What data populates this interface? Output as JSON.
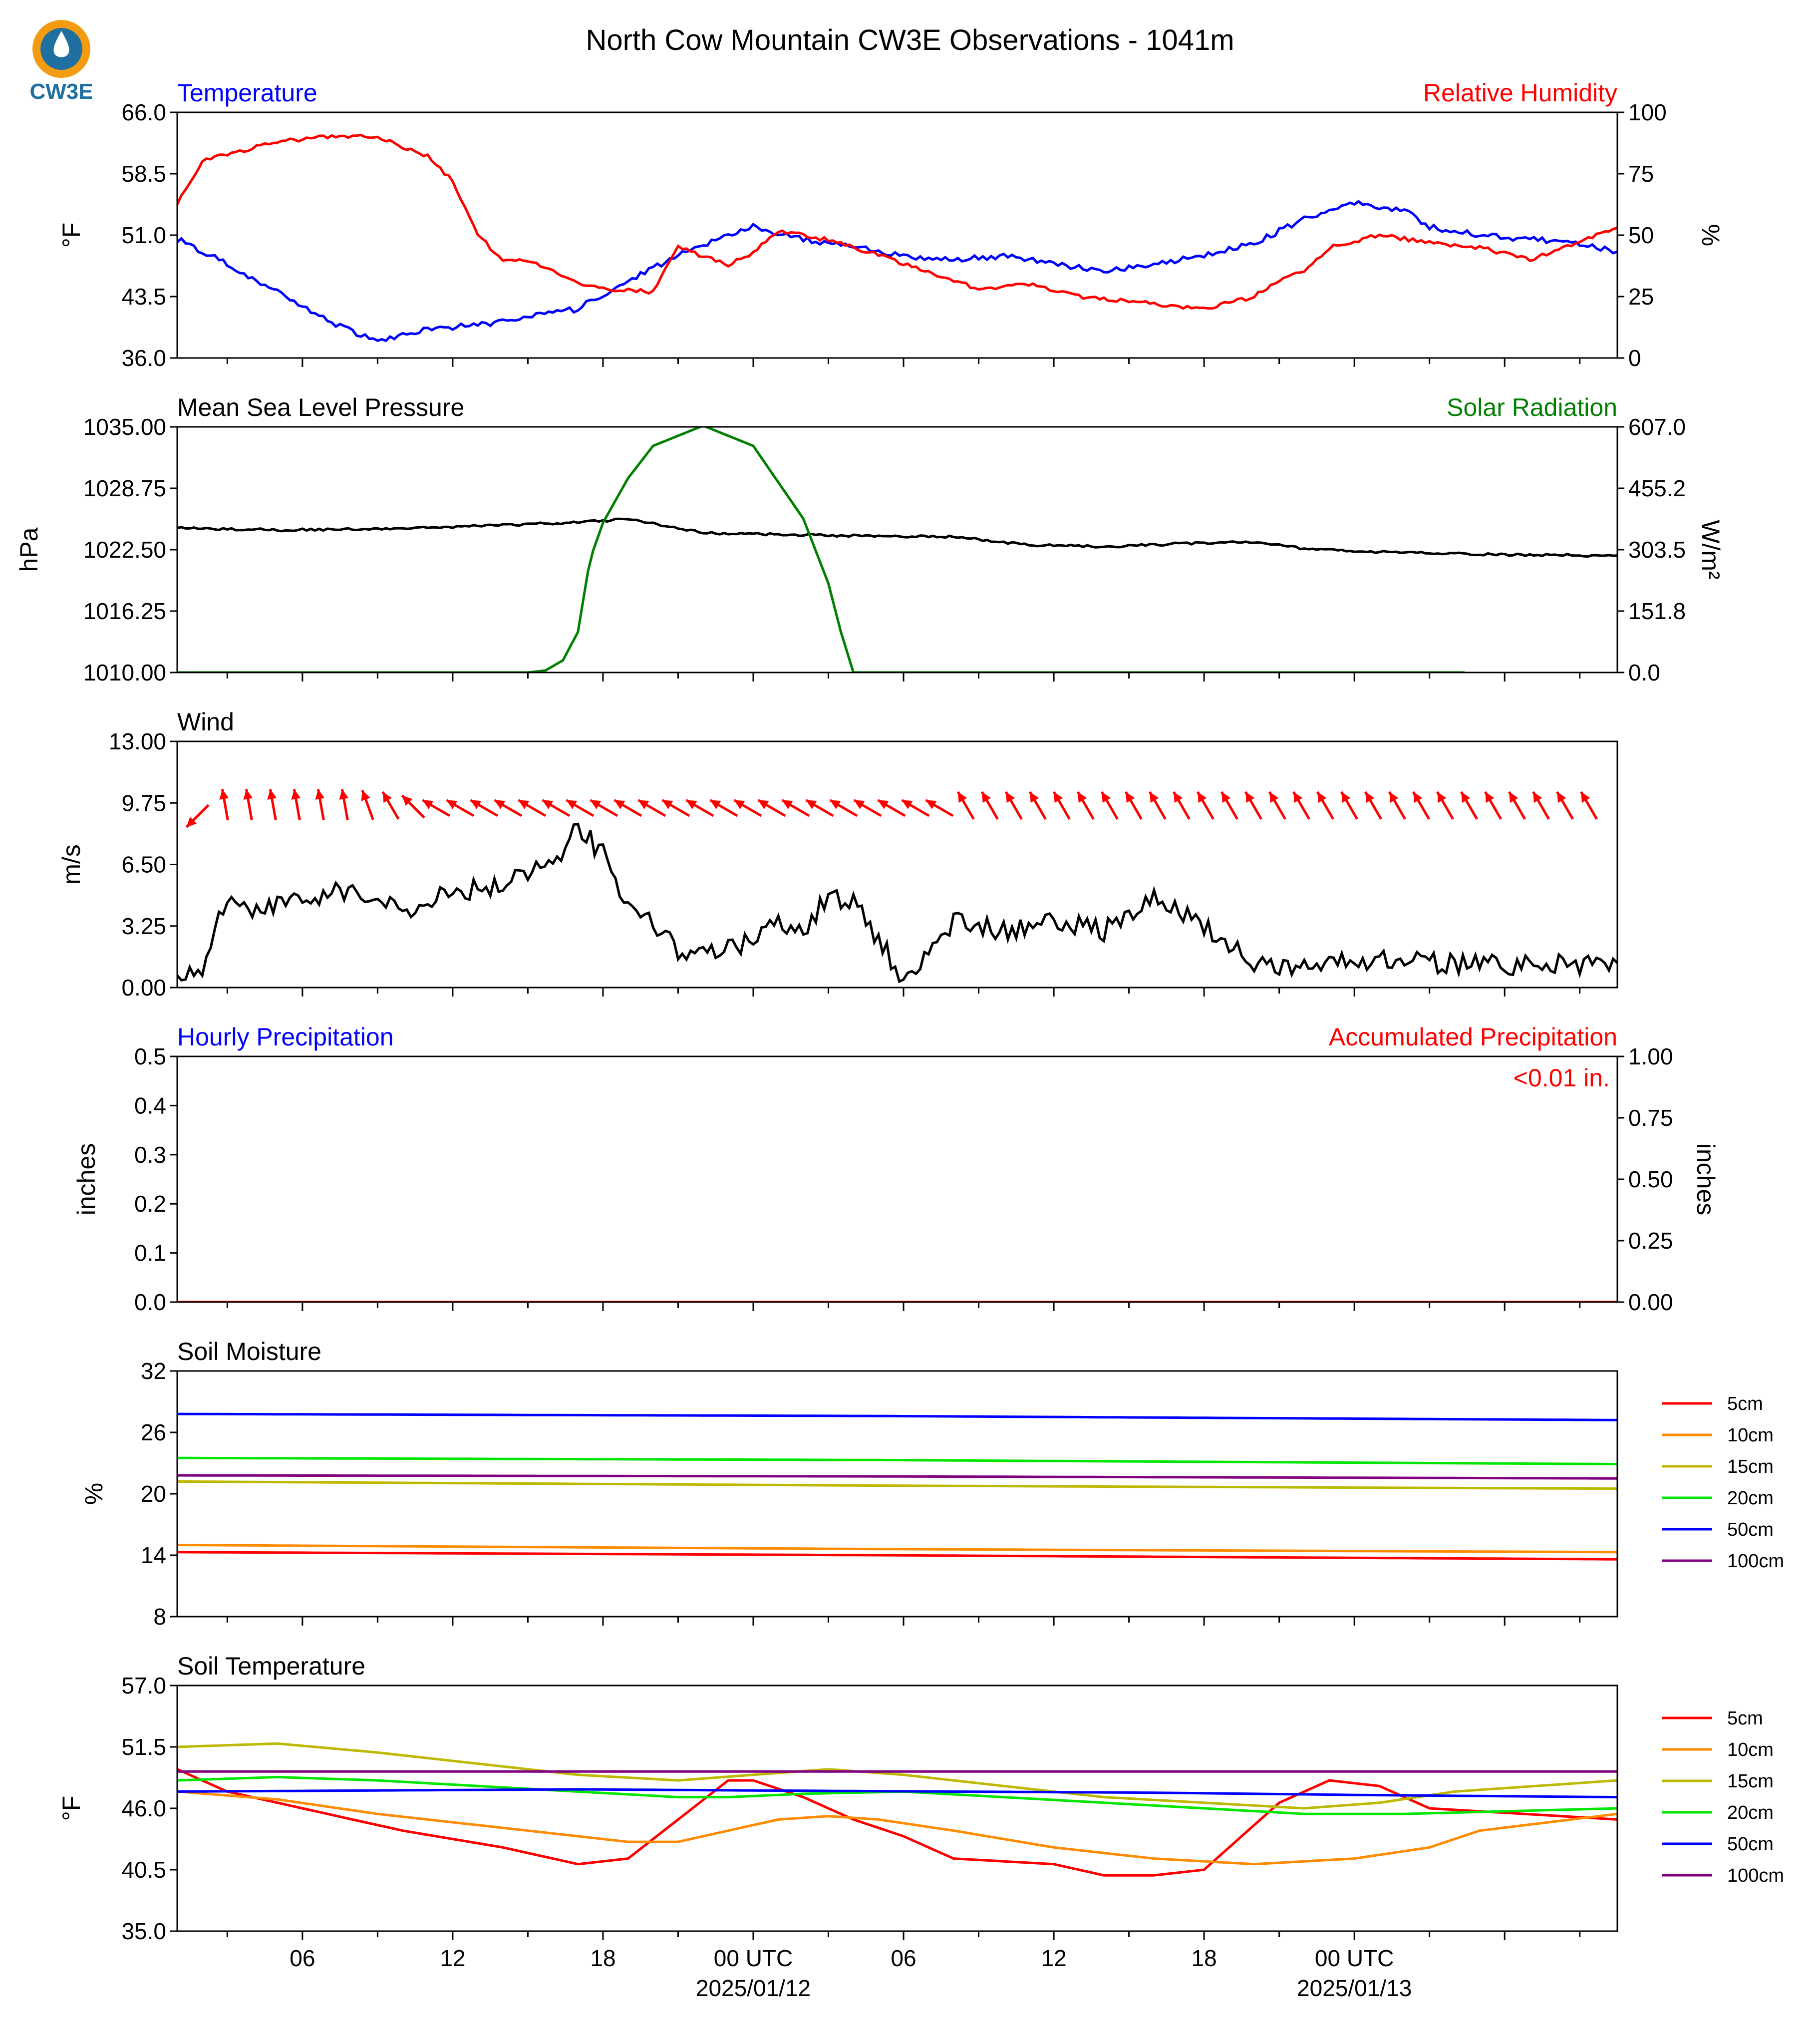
{
  "title": "North Cow Mountain CW3E Observations - 1041m",
  "logo": {
    "text": "CW3E",
    "icon": "cw3e-water-drop-logo"
  },
  "colors": {
    "blue": "#0000ff",
    "red": "#ff0000",
    "green": "#008000",
    "black": "#000000",
    "orange": "#ff8c00",
    "olive": "#bdb800",
    "lime": "#00e600",
    "purple": "#800080"
  },
  "x_axis": {
    "range_hours": [
      -23,
      34.5
    ],
    "ticks": [
      {
        "hour": -18,
        "label": "06"
      },
      {
        "hour": -12,
        "label": "12"
      },
      {
        "hour": -6,
        "label": "18"
      },
      {
        "hour": 0,
        "label": "00 UTC",
        "sub": "2025/01/12"
      },
      {
        "hour": 6,
        "label": "06"
      },
      {
        "hour": 12,
        "label": "12"
      },
      {
        "hour": 18,
        "label": "18"
      },
      {
        "hour": 24,
        "label": "00 UTC",
        "sub": "2025/01/13"
      }
    ]
  },
  "chart_data": [
    {
      "type": "line",
      "left_title": "Temperature",
      "right_title": "Relative Humidity",
      "ylabel": "°F",
      "ylabel_right": "%",
      "ylim": [
        36.0,
        66.0
      ],
      "yticks": [
        "36.0",
        "43.5",
        "51.0",
        "58.5",
        "66.0"
      ],
      "ylim_right": [
        0,
        100
      ],
      "yticks_right": [
        "0",
        "25",
        "50",
        "75",
        "100"
      ],
      "series": [
        {
          "axis": "left",
          "color": "#0000ff",
          "x": [
            -23,
            -21,
            -19,
            -17,
            -15,
            -13,
            -11,
            -9,
            -7,
            -5,
            -3,
            -1,
            0,
            2,
            4,
            6,
            8,
            10,
            12,
            14,
            16,
            18,
            20,
            22,
            24,
            26,
            27,
            29,
            31,
            33,
            34.5
          ],
          "y": [
            50.5,
            47.5,
            44.0,
            40.5,
            38.0,
            39.5,
            40.0,
            41.0,
            42.0,
            45.5,
            48.5,
            51.0,
            52.0,
            50.5,
            49.5,
            48.5,
            48.0,
            48.5,
            47.5,
            46.5,
            47.5,
            48.5,
            50.0,
            53.0,
            55.0,
            54.0,
            52.0,
            51.0,
            50.5,
            50.0,
            49.0
          ]
        },
        {
          "axis": "right",
          "color": "#ff0000",
          "x": [
            -23,
            -22,
            -21,
            -19,
            -17,
            -15,
            -13,
            -12,
            -11,
            -10,
            -9,
            -7,
            -6,
            -4,
            -3,
            -1,
            0,
            1,
            3,
            5,
            7,
            9,
            11,
            13,
            15,
            17,
            18,
            20,
            21,
            22,
            23,
            25,
            27,
            29,
            31,
            34.5
          ],
          "y": [
            63,
            80,
            83,
            88,
            90,
            90,
            82,
            72,
            50,
            40,
            40,
            30,
            28,
            27,
            45,
            38,
            43,
            52,
            48,
            42,
            35,
            28,
            30,
            25,
            23,
            21,
            20,
            25,
            32,
            35,
            45,
            50,
            47,
            45,
            40,
            53
          ]
        }
      ]
    },
    {
      "type": "line",
      "left_title": "Mean Sea Level Pressure",
      "right_title": "Solar Radiation",
      "ylabel": "hPa",
      "ylabel_right": "W/m²",
      "ylim": [
        1010.0,
        1035.0
      ],
      "yticks": [
        "1010.00",
        "1016.25",
        "1022.50",
        "1028.75",
        "1035.00"
      ],
      "ylim_right": [
        0.0,
        607.0
      ],
      "yticks_right": [
        "0.0",
        "151.8",
        "303.5",
        "455.2",
        "607.0"
      ],
      "series": [
        {
          "axis": "left",
          "color": "#000000",
          "x": [
            -23,
            -19,
            -15,
            -11,
            -7,
            -5,
            -2,
            2,
            5,
            8,
            11,
            14,
            18,
            20,
            22,
            24,
            26,
            27,
            30,
            34.5
          ],
          "y": [
            1024.7,
            1024.5,
            1024.6,
            1024.9,
            1025.3,
            1025.6,
            1024.2,
            1024.0,
            1023.9,
            1023.8,
            1023.0,
            1022.8,
            1023.2,
            1023.3,
            1022.6,
            1022.3,
            1022.2,
            1022.2,
            1022.0,
            1021.9
          ]
        },
        {
          "axis": "right",
          "color": "#008000",
          "x": [
            -23,
            -9,
            -8.3,
            -7.6,
            -7,
            -6.6,
            -6.4,
            -6,
            -5,
            -4,
            -2,
            0,
            2,
            3,
            3.5,
            4,
            7,
            14,
            15,
            15.8,
            16.6,
            17,
            17.4,
            18,
            19,
            20,
            22,
            24,
            26,
            27,
            28,
            28.4
          ],
          "y": [
            0,
            0,
            5,
            30,
            100,
            250,
            300,
            370,
            480,
            560,
            610,
            560,
            380,
            220,
            100,
            0,
            0,
            0,
            0,
            0,
            0,
            0,
            0,
            0,
            0,
            0,
            0,
            0,
            0,
            0,
            0,
            0
          ]
        }
      ]
    },
    {
      "type": "line",
      "left_title": "Wind",
      "ylabel": "m/s",
      "ylim": [
        0.0,
        13.0
      ],
      "yticks": [
        "0.00",
        "3.25",
        "6.50",
        "9.75",
        "13.00"
      ],
      "series": [
        {
          "color": "#000000",
          "x": [
            -23,
            -22,
            -21.5,
            -21,
            -20,
            -18,
            -16,
            -14,
            -12,
            -10,
            -8,
            -7,
            -6,
            -5,
            -4,
            -3,
            -1,
            0,
            1,
            2,
            3,
            4,
            5,
            6,
            7,
            8,
            10,
            12,
            14,
            16,
            18,
            20,
            22,
            24,
            26,
            28,
            30,
            32,
            34.5
          ],
          "y": [
            0.5,
            1.0,
            3.0,
            5.0,
            4.0,
            4.8,
            5.2,
            4.0,
            5.0,
            5.5,
            6.5,
            8.5,
            7.0,
            4.5,
            3.5,
            2.0,
            2.0,
            2.5,
            3.5,
            3.0,
            4.8,
            4.5,
            2.5,
            0.5,
            2.0,
            3.5,
            3.0,
            3.5,
            3.0,
            4.8,
            3.2,
            1.2,
            1.2,
            1.5,
            1.5,
            1.2,
            1.2,
            1.2,
            1.3
          ]
        }
      ],
      "wind_arrows_deg": [
        225,
        350,
        350,
        350,
        350,
        350,
        350,
        340,
        330,
        315,
        300,
        300,
        300,
        300,
        300,
        300,
        300,
        300,
        300,
        300,
        300,
        300,
        300,
        300,
        300,
        300,
        300,
        300,
        300,
        300,
        300,
        300,
        330,
        330,
        330,
        330,
        330,
        330,
        330,
        330,
        330,
        330,
        330,
        330,
        330,
        330,
        330,
        330,
        330,
        330,
        330,
        330,
        330,
        330,
        330,
        330,
        330,
        330,
        330
      ]
    },
    {
      "type": "line",
      "left_title": "Hourly Precipitation",
      "right_title": "Accumulated Precipitation",
      "annotation": "<0.01 in.",
      "ylabel": "inches",
      "ylabel_right": "inches",
      "ylim": [
        0.0,
        0.5
      ],
      "yticks": [
        "0.0",
        "0.1",
        "0.2",
        "0.3",
        "0.4",
        "0.5"
      ],
      "ylim_right": [
        0.0,
        1.0
      ],
      "yticks_right": [
        "0.00",
        "0.25",
        "0.50",
        "0.75",
        "1.00"
      ],
      "series": [
        {
          "axis": "left",
          "color": "#0000ff",
          "x": [
            -23,
            34.5
          ],
          "y": [
            0.0,
            0.0
          ]
        },
        {
          "axis": "right",
          "color": "#ff0000",
          "x": [
            -23,
            34.5
          ],
          "y": [
            0.0,
            0.0
          ]
        }
      ]
    },
    {
      "type": "line",
      "left_title": "Soil Moisture",
      "ylabel": "%",
      "ylim": [
        8,
        32
      ],
      "yticks": [
        "8",
        "14",
        "20",
        "26",
        "32"
      ],
      "legend": "right",
      "series": [
        {
          "name": "5cm",
          "color": "#ff0000",
          "x": [
            -23,
            5,
            34.5
          ],
          "y": [
            14.3,
            14.0,
            13.6
          ]
        },
        {
          "name": "10cm",
          "color": "#ff8c00",
          "x": [
            -23,
            5,
            34.5
          ],
          "y": [
            15.0,
            14.6,
            14.3
          ]
        },
        {
          "name": "15cm",
          "color": "#bdb800",
          "x": [
            -23,
            5,
            34.5
          ],
          "y": [
            21.2,
            20.8,
            20.5
          ]
        },
        {
          "name": "20cm",
          "color": "#00e600",
          "x": [
            -23,
            5,
            34.5
          ],
          "y": [
            23.5,
            23.3,
            22.9
          ]
        },
        {
          "name": "50cm",
          "color": "#0000ff",
          "x": [
            -23,
            5,
            34.5
          ],
          "y": [
            27.8,
            27.6,
            27.2
          ]
        },
        {
          "name": "100cm",
          "color": "#800080",
          "x": [
            -23,
            5,
            34.5
          ],
          "y": [
            21.8,
            21.7,
            21.5
          ]
        }
      ]
    },
    {
      "type": "line",
      "left_title": "Soil Temperature",
      "ylabel": "°F",
      "ylim": [
        35.0,
        57.0
      ],
      "yticks": [
        "35.0",
        "40.5",
        "46.0",
        "51.5",
        "57.0"
      ],
      "legend": "right",
      "series": [
        {
          "name": "5cm",
          "color": "#ff0000",
          "x": [
            -23,
            -21,
            -18,
            -14,
            -10,
            -7,
            -5,
            -3,
            -1,
            0,
            2,
            4,
            6,
            8,
            12,
            14,
            16,
            18,
            19,
            21,
            23,
            25,
            27,
            34.5
          ],
          "y": [
            49.5,
            47.5,
            46.0,
            44.0,
            42.5,
            41.0,
            41.5,
            45.0,
            48.5,
            48.5,
            47.0,
            45.0,
            43.5,
            41.5,
            41.0,
            40.0,
            40.0,
            40.5,
            42.5,
            46.5,
            48.5,
            48.0,
            46.0,
            45.0
          ]
        },
        {
          "name": "10cm",
          "color": "#ff8c00",
          "x": [
            -23,
            -19,
            -15,
            -11,
            -7,
            -5,
            -3,
            -1,
            1,
            3,
            5,
            8,
            12,
            16,
            20,
            24,
            27,
            29,
            34.5
          ],
          "y": [
            47.5,
            46.8,
            45.5,
            44.5,
            43.5,
            43.0,
            43.0,
            44.0,
            45.0,
            45.3,
            45.0,
            44.0,
            42.5,
            41.5,
            41.0,
            41.5,
            42.5,
            44.0,
            45.5
          ]
        },
        {
          "name": "15cm",
          "color": "#bdb800",
          "x": [
            -23,
            -19,
            -15,
            -11,
            -7,
            -3,
            0,
            3,
            6,
            10,
            14,
            18,
            22,
            25,
            28,
            34.5
          ],
          "y": [
            51.5,
            51.8,
            51.0,
            50.0,
            49.0,
            48.5,
            49.0,
            49.5,
            49.0,
            48.0,
            47.0,
            46.5,
            46.0,
            46.5,
            47.5,
            48.5
          ]
        },
        {
          "name": "20cm",
          "color": "#00e600",
          "x": [
            -23,
            -19,
            -15,
            -11,
            -7,
            -3,
            -1,
            2,
            6,
            10,
            14,
            18,
            22,
            26,
            34.5
          ],
          "y": [
            48.5,
            48.8,
            48.5,
            48.0,
            47.5,
            47.0,
            47.0,
            47.3,
            47.5,
            47.0,
            46.5,
            46.0,
            45.5,
            45.5,
            46.0
          ]
        },
        {
          "name": "50cm",
          "color": "#0000ff",
          "x": [
            -23,
            -15,
            -7,
            0,
            8,
            16,
            24,
            34.5
          ],
          "y": [
            47.5,
            47.6,
            47.7,
            47.6,
            47.5,
            47.4,
            47.2,
            47.0
          ]
        },
        {
          "name": "100cm",
          "color": "#800080",
          "x": [
            -23,
            -10,
            0,
            10,
            20,
            34.5
          ],
          "y": [
            49.3,
            49.3,
            49.3,
            49.3,
            49.3,
            49.3
          ]
        }
      ]
    }
  ]
}
